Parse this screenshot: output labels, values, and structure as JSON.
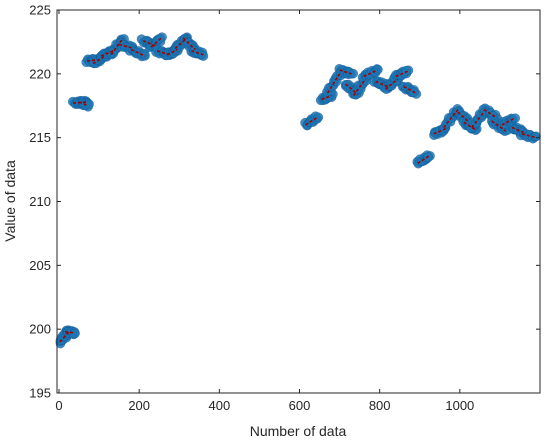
{
  "chart_data": {
    "type": "scatter",
    "xlabel": "Number of data",
    "ylabel": "Value of data",
    "xlim": [
      -5,
      1200
    ],
    "ylim": [
      195,
      225
    ],
    "x_ticks": [
      0,
      200,
      400,
      600,
      800,
      1000
    ],
    "y_ticks": [
      195,
      200,
      205,
      210,
      215,
      220,
      225
    ],
    "grid": false,
    "colors": {
      "points": "#1f77b4",
      "trend": "#a00000"
    },
    "segments": [
      {
        "x": [
          2,
          25
        ],
        "y": [
          199.0,
          199.8
        ]
      },
      {
        "x": [
          15,
          40
        ],
        "y": [
          199.8,
          199.7
        ]
      },
      {
        "x": [
          35,
          70
        ],
        "y": [
          217.7,
          217.8
        ]
      },
      {
        "x": [
          50,
          72
        ],
        "y": [
          217.8,
          217.5
        ]
      },
      {
        "x": [
          70,
          95
        ],
        "y": [
          221.0,
          221.1
        ]
      },
      {
        "x": [
          85,
          115
        ],
        "y": [
          220.8,
          221.4
        ]
      },
      {
        "x": [
          105,
          135
        ],
        "y": [
          221.4,
          221.8
        ]
      },
      {
        "x": [
          130,
          160
        ],
        "y": [
          221.5,
          222.8
        ]
      },
      {
        "x": [
          150,
          185
        ],
        "y": [
          222.3,
          222.0
        ]
      },
      {
        "x": [
          180,
          215
        ],
        "y": [
          221.9,
          221.4
        ]
      },
      {
        "x": [
          210,
          240
        ],
        "y": [
          222.6,
          222.2
        ]
      },
      {
        "x": [
          230,
          255
        ],
        "y": [
          222.1,
          222.8
        ]
      },
      {
        "x": [
          245,
          275
        ],
        "y": [
          221.8,
          221.5
        ]
      },
      {
        "x": [
          270,
          295
        ],
        "y": [
          221.5,
          221.9
        ]
      },
      {
        "x": [
          290,
          320
        ],
        "y": [
          222.0,
          222.8
        ]
      },
      {
        "x": [
          310,
          340
        ],
        "y": [
          222.8,
          221.9
        ]
      },
      {
        "x": [
          330,
          360
        ],
        "y": [
          221.8,
          221.5
        ]
      },
      {
        "x": [
          615,
          645
        ],
        "y": [
          216.0,
          216.6
        ]
      },
      {
        "x": [
          655,
          680
        ],
        "y": [
          218.0,
          218.3
        ]
      },
      {
        "x": [
          670,
          700
        ],
        "y": [
          218.5,
          220.0
        ]
      },
      {
        "x": [
          700,
          730
        ],
        "y": [
          220.3,
          220.0
        ]
      },
      {
        "x": [
          715,
          745
        ],
        "y": [
          219.2,
          218.4
        ]
      },
      {
        "x": [
          735,
          765
        ],
        "y": [
          218.3,
          219.6
        ]
      },
      {
        "x": [
          760,
          795
        ],
        "y": [
          219.8,
          220.3
        ]
      },
      {
        "x": [
          790,
          820
        ],
        "y": [
          219.4,
          219.0
        ]
      },
      {
        "x": [
          815,
          845
        ],
        "y": [
          218.8,
          219.6
        ]
      },
      {
        "x": [
          840,
          870
        ],
        "y": [
          219.8,
          220.2
        ]
      },
      {
        "x": [
          860,
          890
        ],
        "y": [
          219.0,
          218.5
        ]
      },
      {
        "x": [
          895,
          925
        ],
        "y": [
          213.0,
          213.6
        ]
      },
      {
        "x": [
          935,
          965
        ],
        "y": [
          215.3,
          215.7
        ]
      },
      {
        "x": [
          960,
          995
        ],
        "y": [
          215.8,
          217.2
        ]
      },
      {
        "x": [
          995,
          1020
        ],
        "y": [
          217.0,
          216.3
        ]
      },
      {
        "x": [
          1010,
          1040
        ],
        "y": [
          216.2,
          215.6
        ]
      },
      {
        "x": [
          1030,
          1060
        ],
        "y": [
          215.8,
          217.0
        ]
      },
      {
        "x": [
          1060,
          1090
        ],
        "y": [
          217.2,
          216.6
        ]
      },
      {
        "x": [
          1080,
          1115
        ],
        "y": [
          216.3,
          215.5
        ]
      },
      {
        "x": [
          1105,
          1135
        ],
        "y": [
          216.0,
          216.5
        ]
      },
      {
        "x": [
          1130,
          1160
        ],
        "y": [
          215.8,
          215.4
        ]
      },
      {
        "x": [
          1155,
          1190
        ],
        "y": [
          215.3,
          215.0
        ]
      }
    ]
  }
}
